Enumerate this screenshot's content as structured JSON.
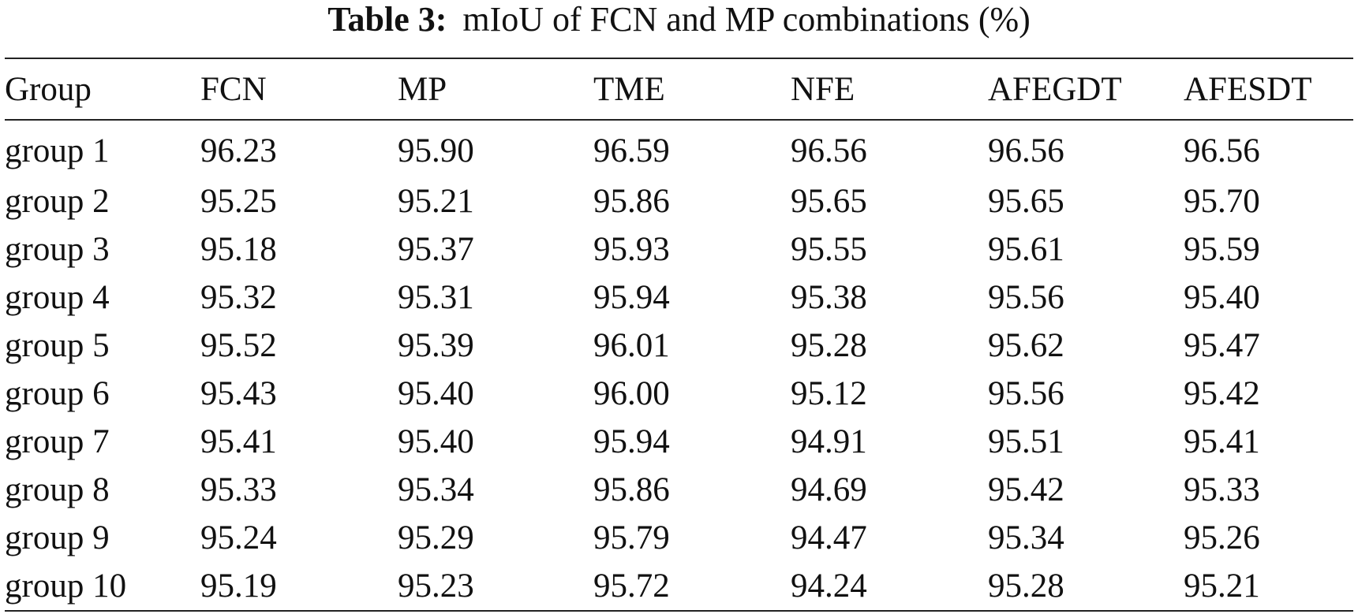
{
  "caption": {
    "label": "Table 3:",
    "title": "mIoU of FCN and MP combinations (%)"
  },
  "table": {
    "headers": [
      "Group",
      "FCN",
      "MP",
      "TME",
      "NFE",
      "AFEGDT",
      "AFESDT"
    ],
    "rows": [
      [
        "group 1",
        "96.23",
        "95.90",
        "96.59",
        "96.56",
        "96.56",
        "96.56"
      ],
      [
        "group 2",
        "95.25",
        "95.21",
        "95.86",
        "95.65",
        "95.65",
        "95.70"
      ],
      [
        "group 3",
        "95.18",
        "95.37",
        "95.93",
        "95.55",
        "95.61",
        "95.59"
      ],
      [
        "group 4",
        "95.32",
        "95.31",
        "95.94",
        "95.38",
        "95.56",
        "95.40"
      ],
      [
        "group 5",
        "95.52",
        "95.39",
        "96.01",
        "95.28",
        "95.62",
        "95.47"
      ],
      [
        "group 6",
        "95.43",
        "95.40",
        "96.00",
        "95.12",
        "95.56",
        "95.42"
      ],
      [
        "group 7",
        "95.41",
        "95.40",
        "95.94",
        "94.91",
        "95.51",
        "95.41"
      ],
      [
        "group 8",
        "95.33",
        "95.34",
        "95.86",
        "94.69",
        "95.42",
        "95.33"
      ],
      [
        "group 9",
        "95.24",
        "95.29",
        "95.79",
        "94.47",
        "95.34",
        "95.26"
      ],
      [
        "group 10",
        "95.19",
        "95.23",
        "95.72",
        "94.24",
        "95.28",
        "95.21"
      ]
    ]
  }
}
